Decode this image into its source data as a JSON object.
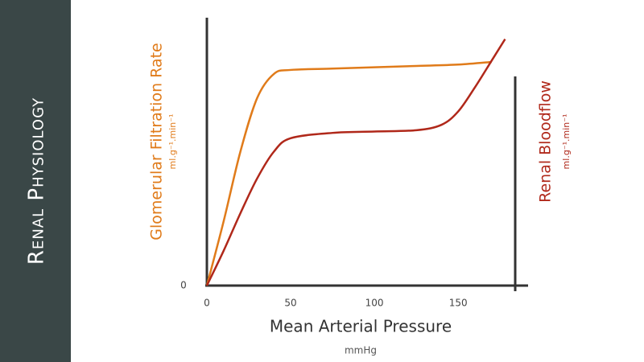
{
  "sidebar": {
    "title": "Renal Physiology"
  },
  "chart_data": {
    "type": "line",
    "x_label": "Mean Arterial Pressure",
    "x_unit": "mmHg",
    "y_unit": "ml.g⁻¹.min⁻¹",
    "y2_unit": "ml.g⁻¹.min⁻¹",
    "xlim": [
      0,
      185
    ],
    "xticks": [
      0,
      50,
      100,
      150
    ],
    "ylim": [
      0,
      100
    ],
    "yticks": [
      0
    ],
    "y2lim": [
      0,
      100
    ],
    "series": [
      {
        "name": "Glomerular Filtration Rate",
        "color": "#e07b1a",
        "x": [
          0,
          10,
          20,
          30,
          40,
          50,
          75,
          100,
          125,
          150,
          170
        ],
        "values": [
          0,
          24,
          50,
          70,
          79,
          80.5,
          81,
          81.5,
          82,
          82.5,
          83.5
        ]
      },
      {
        "name": "Renal Bloodflow",
        "color": "#b0281a",
        "axis": "y2",
        "x": [
          0,
          10,
          20,
          30,
          40,
          50,
          75,
          100,
          125,
          140,
          150,
          160,
          170,
          178
        ],
        "values": [
          0,
          13,
          27,
          40,
          50,
          55,
          57,
          57.5,
          58,
          60,
          65,
          74,
          84,
          92
        ]
      }
    ]
  }
}
